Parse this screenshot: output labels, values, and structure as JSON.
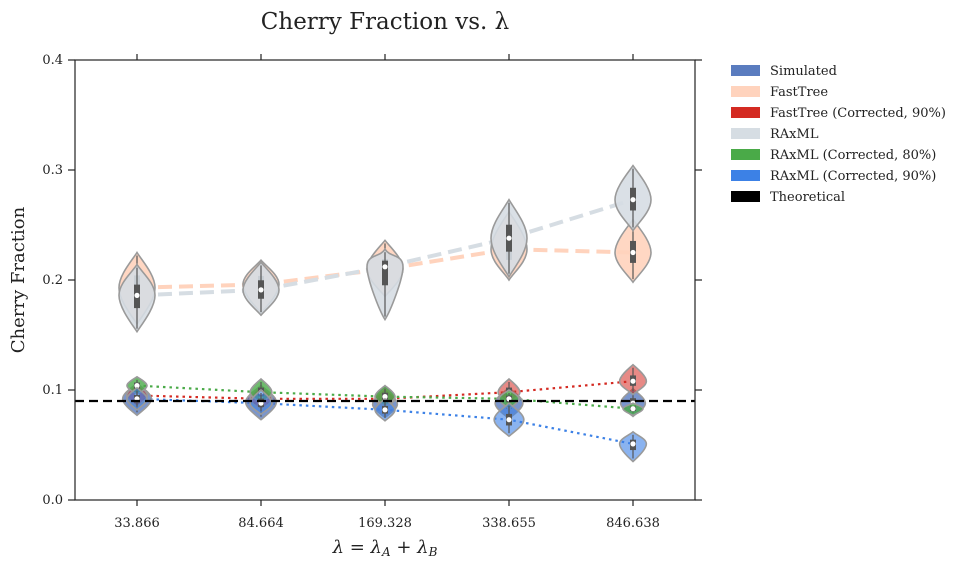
{
  "chart_data": {
    "type": "violin",
    "title": "Cherry Fraction vs. λ",
    "xlabel": "λ = λ_A + λ_B",
    "ylabel": "Cherry Fraction",
    "categories": [
      "33.866",
      "84.664",
      "169.328",
      "338.655",
      "846.638"
    ],
    "ylim": [
      0.0,
      0.4
    ],
    "yticks": [
      "0.0",
      "0.1",
      "0.2",
      "0.3",
      "0.4"
    ],
    "grid": false,
    "legend_position": "outside-right",
    "theoretical": 0.09,
    "series": [
      {
        "name": "Simulated",
        "color": "#5a7cbf",
        "line_style": "none",
        "alpha": 0.8,
        "values": [
          0.092,
          0.089,
          0.087,
          0.088,
          0.088
        ],
        "violin_low": [
          0.077,
          0.073,
          0.075,
          0.074,
          0.076
        ],
        "violin_high": [
          0.106,
          0.104,
          0.1,
          0.102,
          0.101
        ]
      },
      {
        "name": "FastTree",
        "color": "#ffd3bd",
        "line_style": "dashed",
        "alpha": 0.9,
        "values": [
          0.193,
          0.196,
          0.21,
          0.228,
          0.225
        ],
        "violin_low": [
          0.16,
          0.17,
          0.185,
          0.2,
          0.198
        ],
        "violin_high": [
          0.225,
          0.218,
          0.236,
          0.262,
          0.255
        ]
      },
      {
        "name": "FastTree (Corrected, 90%)",
        "color": "#d42a22",
        "line_style": "dotted",
        "alpha": 0.55,
        "values": [
          0.095,
          0.092,
          0.092,
          0.098,
          0.108
        ],
        "violin_low": [
          0.085,
          0.082,
          0.084,
          0.088,
          0.096
        ],
        "violin_high": [
          0.106,
          0.104,
          0.103,
          0.11,
          0.123
        ]
      },
      {
        "name": "RAxML",
        "color": "#d6dde3",
        "line_style": "dashed",
        "alpha": 0.9,
        "values": [
          0.186,
          0.191,
          0.212,
          0.238,
          0.273
        ],
        "violin_low": [
          0.153,
          0.168,
          0.164,
          0.203,
          0.245
        ],
        "violin_high": [
          0.214,
          0.216,
          0.228,
          0.273,
          0.304
        ]
      },
      {
        "name": "RAxML (Corrected, 80%)",
        "color": "#4aaa48",
        "line_style": "dotted",
        "alpha": 0.8,
        "values": [
          0.104,
          0.098,
          0.094,
          0.092,
          0.083
        ],
        "violin_low": [
          0.096,
          0.088,
          0.085,
          0.083,
          0.077
        ],
        "violin_high": [
          0.112,
          0.11,
          0.104,
          0.1,
          0.088
        ]
      },
      {
        "name": "RAxML (Corrected, 90%)",
        "color": "#3c81e6",
        "line_style": "dotted",
        "alpha": 0.6,
        "values": [
          0.092,
          0.088,
          0.082,
          0.073,
          0.051
        ],
        "violin_low": [
          0.082,
          0.078,
          0.072,
          0.058,
          0.035
        ],
        "violin_high": [
          0.102,
          0.1,
          0.092,
          0.088,
          0.062
        ]
      },
      {
        "name": "Theoretical",
        "color": "#000000",
        "line_style": "dashed-horizontal",
        "values": [
          0.09
        ]
      }
    ]
  }
}
